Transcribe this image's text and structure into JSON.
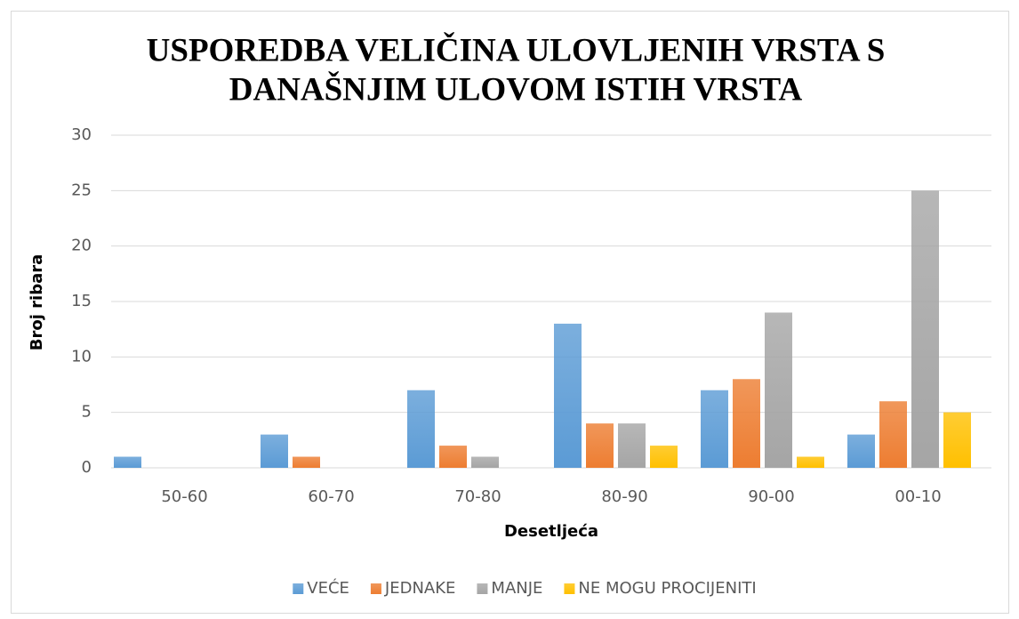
{
  "chart_data": {
    "type": "bar",
    "title": [
      "USPOREDBA VELIČINA ULOVLJENIH VRSTA S",
      "DANAŠNJIM ULOVOM ISTIH VRSTA"
    ],
    "x_label": "Desetljeća",
    "y_label": "Broj ribara",
    "categories": [
      "50-60",
      "60-70",
      "70-80",
      "80-90",
      "90-00",
      "00-10"
    ],
    "series": [
      {
        "name": "VEĆE",
        "color": "#5b9bd5",
        "values": [
          1,
          3,
          7,
          13,
          7,
          3
        ]
      },
      {
        "name": "JEDNAKE",
        "color": "#ed7d31",
        "values": [
          0,
          1,
          2,
          4,
          8,
          6
        ]
      },
      {
        "name": "MANJE",
        "color": "#a5a5a5",
        "values": [
          0,
          0,
          1,
          4,
          14,
          25
        ]
      },
      {
        "name": "NE MOGU PROCIJENITI",
        "color": "#ffc000",
        "values": [
          0,
          0,
          0,
          2,
          1,
          5
        ]
      }
    ],
    "ylim": [
      0,
      30
    ],
    "yticks": [
      0,
      5,
      10,
      15,
      20,
      25,
      30
    ],
    "grid": true,
    "legend": "bottom"
  }
}
